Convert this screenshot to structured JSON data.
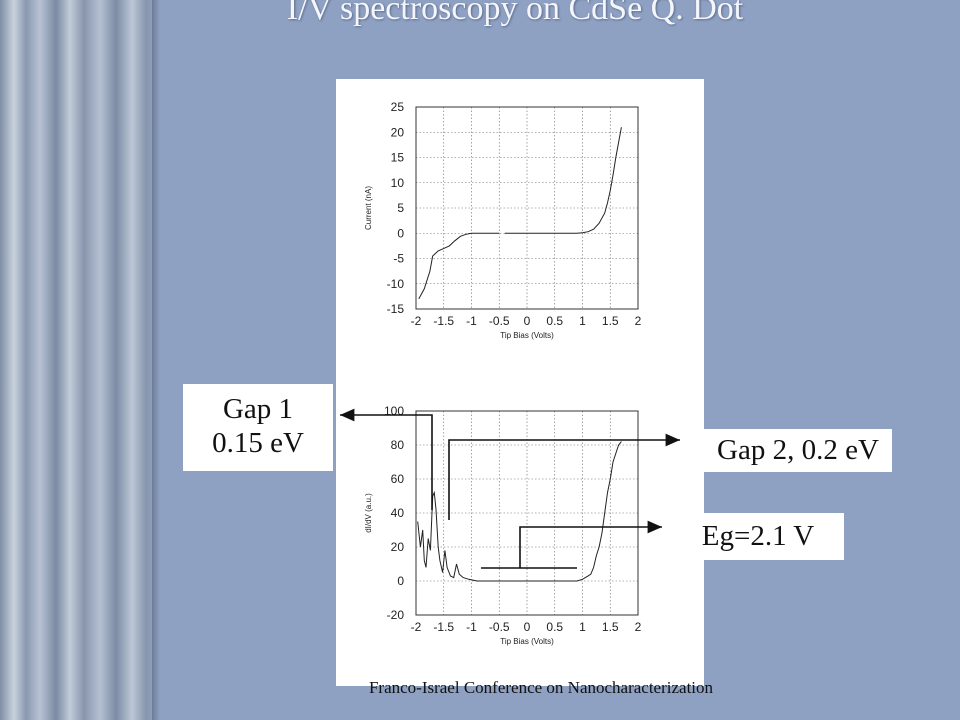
{
  "slide": {
    "title": "I/V spectroscopy on CdSe Q. Dot",
    "footer": "Franco-Israel Conference on Nanocharacterization"
  },
  "annotations": {
    "gap1_line1": "Gap 1",
    "gap1_line2": "0.15 eV",
    "gap2": "Gap 2, 0.2 eV",
    "eg": "Eg=2.1 V"
  },
  "chart_data": [
    {
      "type": "line",
      "xlabel": "Tip Bias (Volts)",
      "ylabel": "Current (nA)",
      "xticks": [
        "-2",
        "-1.5",
        "-1",
        "-0.5",
        "0",
        "0.5",
        "1",
        "1.5",
        "2"
      ],
      "yticks": [
        "25",
        "20",
        "15",
        "10",
        "5",
        "0",
        "-5",
        "-10",
        "-15"
      ],
      "xlim": [
        -2,
        2
      ],
      "ylim": [
        -15,
        25
      ],
      "grid": true,
      "series": [
        {
          "x": [
            -1.95,
            -1.85,
            -1.75,
            -1.7,
            -1.6,
            -1.5,
            -1.4,
            -1.3,
            -1.2,
            -1.1,
            -1.0,
            -0.9,
            -0.8,
            -0.7,
            -0.6,
            -0.5
          ],
          "y": [
            -13.0,
            -11.0,
            -7.5,
            -4.5,
            -3.5,
            -3.0,
            -2.5,
            -1.5,
            -0.6,
            -0.2,
            0,
            0,
            0,
            0,
            0,
            0
          ]
        },
        {
          "x": [
            -0.4,
            0,
            0.5,
            0.9,
            1.0,
            1.1,
            1.2,
            1.3,
            1.4,
            1.45,
            1.5,
            1.55,
            1.6,
            1.65,
            1.7
          ],
          "y": [
            0,
            0,
            0,
            0,
            0.1,
            0.3,
            0.8,
            2.0,
            4.0,
            6.0,
            8.5,
            11.5,
            15.0,
            18.0,
            21.0
          ]
        }
      ]
    },
    {
      "type": "line",
      "xlabel": "Tip Bias (Volts)",
      "ylabel": "dI/dV (a.u.)",
      "xticks": [
        "-2",
        "-1.5",
        "-1",
        "-0.5",
        "0",
        "0.5",
        "1",
        "1.5",
        "2"
      ],
      "yticks": [
        "100",
        "80",
        "60",
        "40",
        "20",
        "0",
        "-20"
      ],
      "xlim": [
        -2,
        2
      ],
      "ylim": [
        -20,
        100
      ],
      "grid": true,
      "series": [
        {
          "x": [
            -1.97,
            -1.92,
            -1.88,
            -1.85,
            -1.82,
            -1.78,
            -1.74,
            -1.7,
            -1.67,
            -1.64,
            -1.6,
            -1.57,
            -1.52,
            -1.48,
            -1.44,
            -1.38,
            -1.32,
            -1.27,
            -1.22,
            -1.15,
            -1.05,
            -0.9,
            -0.5,
            0,
            0.5,
            0.9,
            1.0,
            1.05,
            1.1,
            1.15,
            1.2,
            1.25,
            1.3,
            1.35,
            1.4,
            1.45,
            1.5,
            1.55,
            1.6,
            1.65,
            1.7
          ],
          "y": [
            35,
            20,
            30,
            12,
            8,
            25,
            18,
            50,
            52,
            42,
            20,
            12,
            5,
            18,
            8,
            3,
            2,
            10,
            4,
            2,
            1,
            0,
            0,
            0,
            0,
            0,
            1,
            2,
            3,
            4,
            8,
            15,
            20,
            28,
            40,
            52,
            60,
            70,
            75,
            80,
            82
          ]
        }
      ]
    }
  ]
}
